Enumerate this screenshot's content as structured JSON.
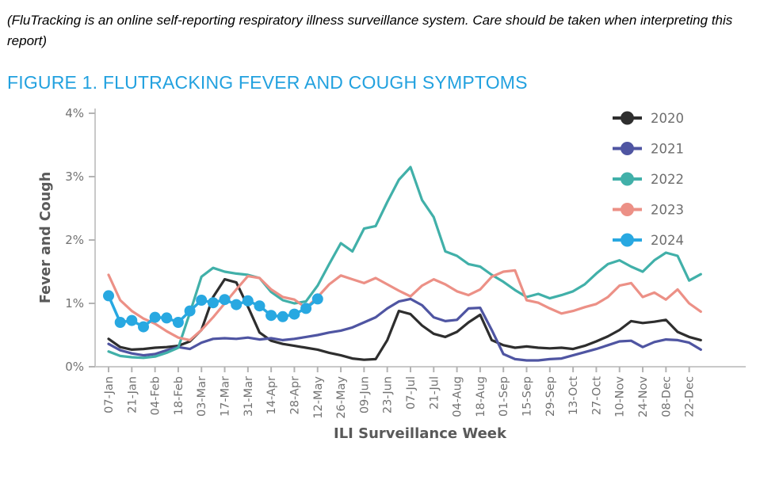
{
  "note": {
    "text": "(FluTracking is an online self-reporting respiratory illness surveillance system. Care should be taken when interpreting this report)"
  },
  "figure_title": "FIGURE 1. FLUTRACKING FEVER AND COUGH SYMPTOMS",
  "chart_data": {
    "type": "line",
    "title": "",
    "xlabel": "ILI Surveillance Week",
    "ylabel": "Fever and Cough",
    "ylim": [
      0,
      4
    ],
    "y_tick_labels": [
      "0%",
      "1%",
      "2%",
      "3%",
      "4%"
    ],
    "y_tick_values": [
      0,
      1,
      2,
      3,
      4
    ],
    "grid": false,
    "legend_position": "top-right",
    "x_tick_labels": [
      "07-Jan",
      "21-Jan",
      "04-Feb",
      "18-Feb",
      "03-Mar",
      "17-Mar",
      "31-Mar",
      "14-Apr",
      "28-Apr",
      "12-May",
      "26-May",
      "09-Jun",
      "23-Jun",
      "07-Jul",
      "21-Jul",
      "04-Aug",
      "18-Aug",
      "01-Sep",
      "15-Sep",
      "29-Sep",
      "13-Oct",
      "27-Oct",
      "10-Nov",
      "24-Nov",
      "08-Dec",
      "22-Dec"
    ],
    "x_tick_unit": "week",
    "weeks_per_labeled_tick": 2,
    "units": "percent of respondents",
    "series": [
      {
        "name": "2020",
        "color": "#2e2e2e",
        "marker": false,
        "values": [
          0.44,
          0.31,
          0.27,
          0.28,
          0.3,
          0.31,
          0.33,
          0.4,
          0.58,
          1.1,
          1.38,
          1.33,
          0.95,
          0.54,
          0.41,
          0.36,
          0.33,
          0.3,
          0.27,
          0.22,
          0.18,
          0.13,
          0.11,
          0.12,
          0.42,
          0.88,
          0.83,
          0.65,
          0.52,
          0.47,
          0.55,
          0.7,
          0.82,
          0.42,
          0.34,
          0.3,
          0.32,
          0.3,
          0.29,
          0.3,
          0.28,
          0.33,
          0.4,
          0.48,
          0.58,
          0.72,
          0.69,
          0.71,
          0.74,
          0.55,
          0.47,
          0.42
        ]
      },
      {
        "name": "2021",
        "color": "#4f55a2",
        "marker": false,
        "values": [
          0.36,
          0.26,
          0.21,
          0.18,
          0.2,
          0.26,
          0.31,
          0.28,
          0.38,
          0.44,
          0.45,
          0.44,
          0.46,
          0.43,
          0.45,
          0.42,
          0.44,
          0.47,
          0.5,
          0.54,
          0.57,
          0.62,
          0.7,
          0.78,
          0.92,
          1.03,
          1.07,
          0.97,
          0.78,
          0.72,
          0.74,
          0.92,
          0.93,
          0.58,
          0.2,
          0.12,
          0.1,
          0.1,
          0.12,
          0.13,
          0.18,
          0.23,
          0.28,
          0.34,
          0.4,
          0.41,
          0.31,
          0.39,
          0.43,
          0.42,
          0.38,
          0.27
        ]
      },
      {
        "name": "2022",
        "color": "#41b0a9",
        "marker": false,
        "values": [
          0.24,
          0.17,
          0.15,
          0.14,
          0.16,
          0.22,
          0.3,
          0.85,
          1.42,
          1.56,
          1.5,
          1.47,
          1.45,
          1.4,
          1.18,
          1.05,
          1.0,
          1.03,
          1.28,
          1.62,
          1.95,
          1.82,
          2.18,
          2.22,
          2.6,
          2.95,
          3.15,
          2.63,
          2.36,
          1.82,
          1.75,
          1.62,
          1.58,
          1.45,
          1.34,
          1.21,
          1.1,
          1.15,
          1.08,
          1.13,
          1.19,
          1.3,
          1.47,
          1.62,
          1.68,
          1.58,
          1.5,
          1.68,
          1.8,
          1.75,
          1.36,
          1.46
        ]
      },
      {
        "name": "2023",
        "color": "#ec9086",
        "marker": false,
        "values": [
          1.45,
          1.05,
          0.88,
          0.76,
          0.68,
          0.56,
          0.46,
          0.42,
          0.58,
          0.78,
          1.0,
          1.22,
          1.43,
          1.4,
          1.22,
          1.1,
          1.06,
          0.93,
          1.1,
          1.3,
          1.44,
          1.38,
          1.32,
          1.4,
          1.3,
          1.2,
          1.11,
          1.28,
          1.38,
          1.3,
          1.19,
          1.13,
          1.22,
          1.42,
          1.5,
          1.52,
          1.05,
          1.01,
          0.92,
          0.84,
          0.88,
          0.94,
          0.99,
          1.1,
          1.28,
          1.32,
          1.1,
          1.17,
          1.06,
          1.22,
          1.0,
          0.87
        ]
      },
      {
        "name": "2024",
        "color": "#28a8e1",
        "marker": true,
        "values": [
          1.12,
          0.7,
          0.73,
          0.63,
          0.78,
          0.77,
          0.7,
          0.88,
          1.05,
          1.01,
          1.06,
          0.98,
          1.04,
          0.96,
          0.81,
          0.79,
          0.83,
          0.92,
          1.07
        ]
      }
    ]
  },
  "chart_style": {
    "axis_color": "#c9c9c9",
    "tick_color": "#b3b3b3",
    "tick_label_color": "#737373",
    "axis_label_color": "#595959",
    "legend_text_color": "#6e6e6e"
  }
}
